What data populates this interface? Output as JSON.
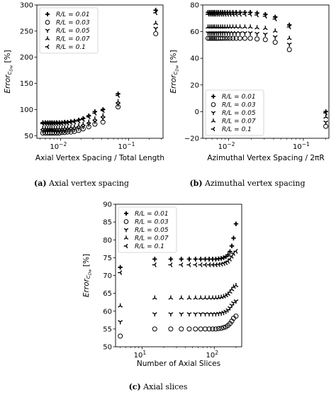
{
  "chart_data": [
    {
      "type": "scatter",
      "caption_letter": "(a)",
      "caption_text": "Axial vertex spacing",
      "xlabel": "Axial Vertex Spacing / Total Length",
      "ylabel_main": "Error",
      "ylabel_sub": "C",
      "ylabel_subsub": "Dw",
      "ylabel_unit": "[%]",
      "xscale": "log",
      "xlim": [
        0.0045,
        0.32
      ],
      "ylim": [
        45,
        300
      ],
      "yticks": [
        "50",
        "100",
        "150",
        "200",
        "250",
        "300"
      ],
      "yticks_values": [
        50,
        100,
        150,
        200,
        250,
        300
      ],
      "xticks": [
        {
          "base": "10",
          "exp": "−2",
          "value": 0.01
        },
        {
          "base": "10",
          "exp": "−1",
          "value": 0.1
        }
      ],
      "legend_placement": "top-left",
      "x": [
        0.0055,
        0.006,
        0.0065,
        0.007,
        0.0075,
        0.0081,
        0.0088,
        0.0096,
        0.0105,
        0.0115,
        0.0127,
        0.0142,
        0.016,
        0.0185,
        0.0215,
        0.026,
        0.032,
        0.042,
        0.07,
        0.25
      ],
      "series": [
        {
          "name": "R/L = 0.01",
          "marker": "plus",
          "values": [
            75,
            75,
            75,
            75,
            75,
            75,
            75,
            75,
            75,
            76,
            76,
            77,
            78,
            80,
            83,
            88,
            96,
            100,
            130,
            290
          ]
        },
        {
          "name": "R/L = 0.03",
          "marker": "circle",
          "values": [
            55,
            55,
            55,
            55,
            55,
            55,
            55,
            55,
            56,
            56,
            57,
            57,
            58,
            60,
            63,
            67,
            72,
            76,
            105,
            245
          ]
        },
        {
          "name": "R/L = 0.05",
          "marker": "tri_down",
          "values": [
            59,
            59,
            59,
            59,
            59,
            59,
            59,
            59,
            60,
            60,
            61,
            61,
            62,
            64,
            67,
            72,
            77,
            83,
            110,
            255
          ]
        },
        {
          "name": "R/L = 0.07",
          "marker": "tri_up",
          "values": [
            64,
            64,
            64,
            64,
            64,
            64,
            64,
            64,
            64,
            65,
            65,
            66,
            67,
            69,
            72,
            76,
            82,
            88,
            115,
            265
          ]
        },
        {
          "name": "R/L = 0.1",
          "marker": "tri_left",
          "values": [
            73,
            73,
            73,
            73,
            73,
            73,
            73,
            73,
            73,
            74,
            74,
            75,
            76,
            78,
            81,
            86,
            93,
            98,
            127,
            285
          ]
        }
      ]
    },
    {
      "type": "scatter",
      "caption_letter": "(b)",
      "caption_text": "Azimuthal vertex spacing",
      "xlabel": "Azimuthal Vertex Spacing / 2πR",
      "ylabel_main": "Error",
      "ylabel_sub": "C",
      "ylabel_subsub": "Dw",
      "ylabel_unit": "[%]",
      "xscale": "log",
      "xlim": [
        0.0045,
        0.22
      ],
      "ylim": [
        -20,
        80
      ],
      "yticks": [
        "−20",
        "0",
        "20",
        "40",
        "60",
        "80"
      ],
      "yticks_values": [
        -20,
        0,
        20,
        40,
        60,
        80
      ],
      "xticks": [
        {
          "base": "10",
          "exp": "−2",
          "value": 0.01
        },
        {
          "base": "10",
          "exp": "−1",
          "value": 0.1
        }
      ],
      "legend_placement": "bottom-left",
      "x": [
        0.0053,
        0.0056,
        0.0059,
        0.0062,
        0.0065,
        0.0069,
        0.0073,
        0.0078,
        0.0083,
        0.0089,
        0.0096,
        0.0104,
        0.0114,
        0.0126,
        0.0142,
        0.0165,
        0.0195,
        0.024,
        0.031,
        0.042,
        0.065,
        0.2
      ],
      "series": [
        {
          "name": "R/L = 0.01",
          "marker": "plus",
          "values": [
            74.5,
            74.5,
            74.5,
            74.5,
            74.5,
            74.5,
            74.5,
            74.5,
            74.5,
            74.5,
            74.5,
            74.5,
            74.5,
            74.5,
            74.5,
            74.5,
            74.5,
            74,
            73,
            71,
            65,
            0
          ]
        },
        {
          "name": "R/L = 0.03",
          "marker": "circle",
          "values": [
            55,
            55,
            55,
            55,
            55,
            55,
            55,
            55,
            55,
            55,
            55,
            55,
            55,
            55,
            55,
            55,
            55,
            54.5,
            54,
            52,
            46.5,
            -11
          ]
        },
        {
          "name": "R/L = 0.05",
          "marker": "tri_down",
          "values": [
            59,
            59,
            59,
            59,
            59,
            59,
            59,
            59,
            59,
            59,
            59,
            59,
            59,
            59,
            59,
            59,
            59,
            58.5,
            58,
            56,
            50.5,
            -8
          ]
        },
        {
          "name": "R/L = 0.07",
          "marker": "tri_up",
          "values": [
            63.5,
            63.5,
            63.5,
            63.5,
            63.5,
            63.5,
            63.5,
            63.5,
            63.5,
            63.5,
            63.5,
            63.5,
            63.5,
            63.5,
            63.5,
            63.5,
            63.5,
            63,
            62.5,
            60.5,
            55,
            -4
          ]
        },
        {
          "name": "R/L = 0.1",
          "marker": "tri_left",
          "values": [
            73,
            73,
            73,
            73,
            73,
            73,
            73,
            73,
            73,
            73,
            73,
            73,
            73,
            73,
            73,
            73,
            73,
            72.5,
            71.5,
            69.5,
            63.5,
            -1
          ]
        }
      ]
    },
    {
      "type": "scatter",
      "caption_letter": "(c)",
      "caption_text": "Axial slices",
      "xlabel": "Number of Axial Slices",
      "ylabel_main": "Error",
      "ylabel_sub": "C",
      "ylabel_subsub": "Dw",
      "ylabel_unit": "[%]",
      "xscale": "log",
      "xlim": [
        4.3,
        240
      ],
      "ylim": [
        50,
        90
      ],
      "yticks": [
        "50",
        "55",
        "60",
        "65",
        "70",
        "75",
        "80",
        "85",
        "90"
      ],
      "yticks_values": [
        50,
        55,
        60,
        65,
        70,
        75,
        80,
        85,
        90
      ],
      "xticks": [
        {
          "base": "10",
          "exp": "1",
          "value": 10
        },
        {
          "base": "10",
          "exp": "2",
          "value": 100
        }
      ],
      "legend_placement": "top-left",
      "x": [
        5,
        15,
        25,
        35,
        45,
        55,
        65,
        75,
        85,
        95,
        105,
        115,
        125,
        135,
        145,
        155,
        165,
        175,
        185,
        200
      ],
      "series": [
        {
          "name": "R/L = 0.01",
          "marker": "plus",
          "values": [
            72.3,
            74.6,
            74.6,
            74.6,
            74.6,
            74.6,
            74.6,
            74.6,
            74.6,
            74.6,
            74.6,
            74.7,
            74.8,
            75.0,
            75.3,
            75.8,
            76.7,
            78.3,
            80.5,
            84.5
          ]
        },
        {
          "name": "R/L = 0.03",
          "marker": "circle",
          "values": [
            53,
            55,
            55,
            55,
            55,
            55,
            55,
            55,
            55,
            55,
            55,
            55.1,
            55.2,
            55.4,
            55.6,
            56.0,
            56.5,
            57.2,
            58.0,
            58.6
          ]
        },
        {
          "name": "R/L = 0.05",
          "marker": "tri_down",
          "values": [
            57,
            59.2,
            59.2,
            59.2,
            59.2,
            59.2,
            59.2,
            59.2,
            59.2,
            59.2,
            59.2,
            59.3,
            59.4,
            59.6,
            59.9,
            60.3,
            60.9,
            61.6,
            62.3,
            62.8
          ]
        },
        {
          "name": "R/L = 0.07",
          "marker": "tri_up",
          "values": [
            61.5,
            63.7,
            63.7,
            63.7,
            63.7,
            63.7,
            63.7,
            63.7,
            63.7,
            63.7,
            63.7,
            63.8,
            63.9,
            64.1,
            64.4,
            64.8,
            65.4,
            66.1,
            66.8,
            67.2
          ]
        },
        {
          "name": "R/L = 0.1",
          "marker": "tri_left",
          "values": [
            70.8,
            73.0,
            73.0,
            73.0,
            73.0,
            73.0,
            73.0,
            73.0,
            73.0,
            73.0,
            73.0,
            73.1,
            73.2,
            73.4,
            73.6,
            74.0,
            74.6,
            75.4,
            76.2,
            76.8
          ]
        }
      ]
    }
  ]
}
